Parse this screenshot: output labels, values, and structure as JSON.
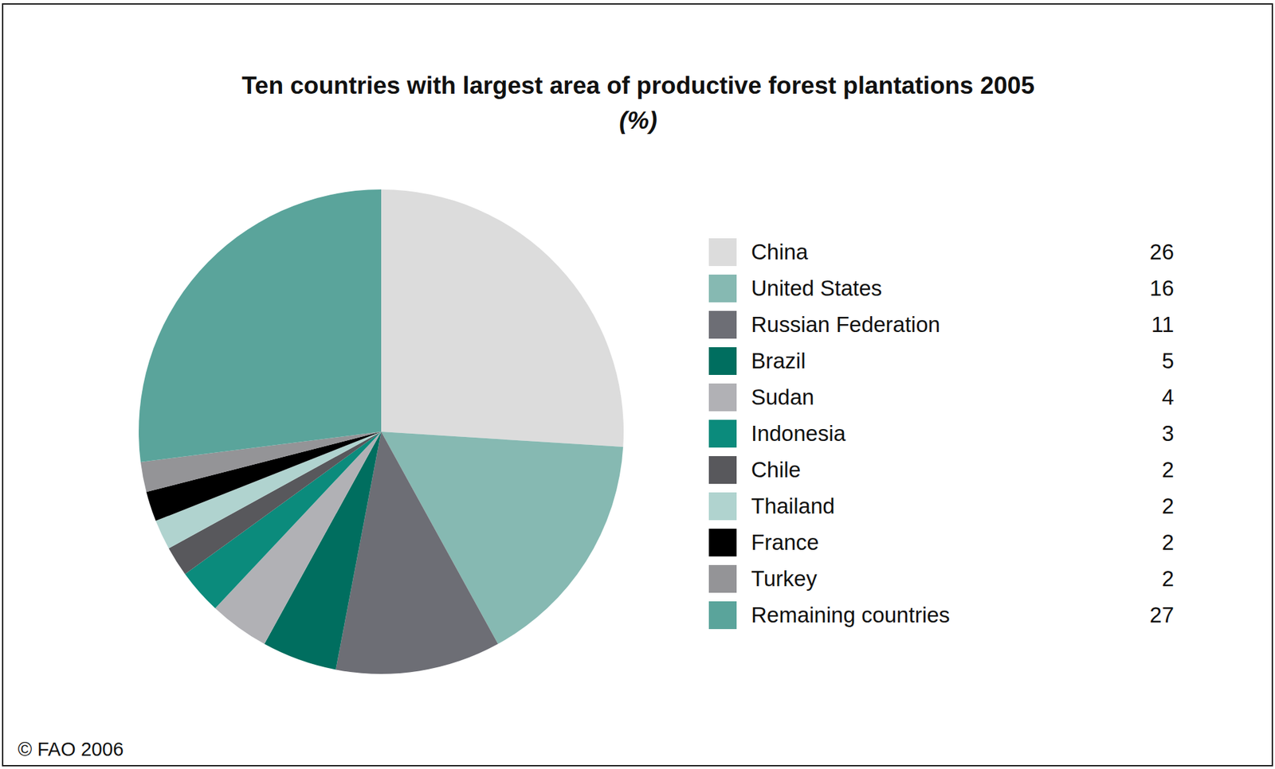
{
  "chart_data": {
    "type": "pie",
    "title": "Ten countries with largest area of productive forest plantations 2005",
    "subtitle": "(%)",
    "annotations": [
      "© FAO 2006"
    ],
    "categories": [
      "China",
      "United States",
      "Russian Federation",
      "Brazil",
      "Sudan",
      "Indonesia",
      "Chile",
      "Thailand",
      "France",
      "Turkey",
      "Remaining countries"
    ],
    "values": [
      26,
      16,
      11,
      5,
      4,
      3,
      2,
      2,
      2,
      2,
      27
    ],
    "colors": [
      "#dcdcdc",
      "#86b9b2",
      "#6d6e75",
      "#006e5f",
      "#b1b1b5",
      "#0b8b7c",
      "#58585c",
      "#b0d3cf",
      "#000000",
      "#949497",
      "#5aa49b"
    ],
    "legend": "right"
  }
}
